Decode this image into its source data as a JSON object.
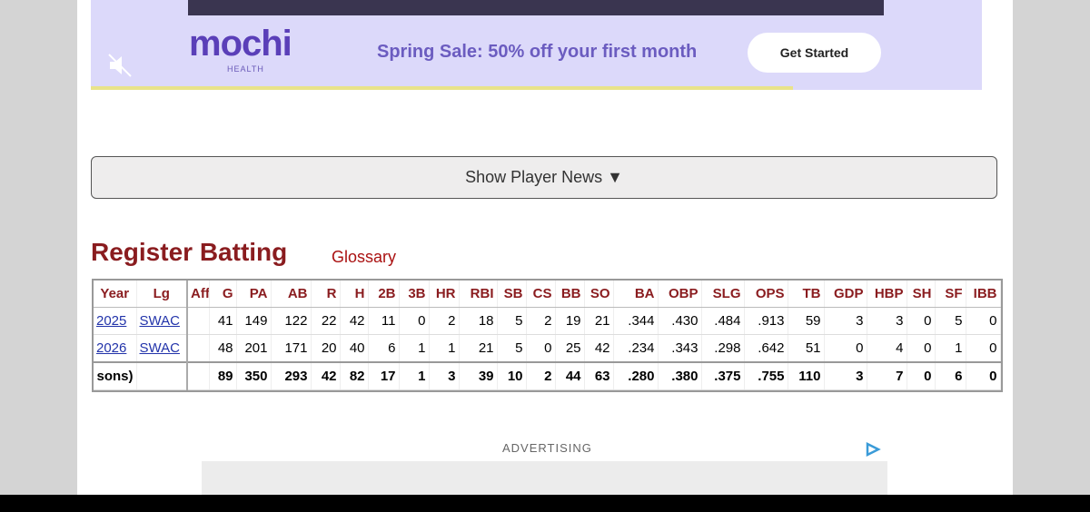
{
  "ad": {
    "brand": "mochi",
    "brand_sub": "HEALTH",
    "headline": "Spring Sale: 50% off your first month",
    "button": "Get Started"
  },
  "news_button": "Show Player News ▼",
  "section": {
    "title": "Register Batting",
    "glossary": "Glossary"
  },
  "table": {
    "columns": [
      "Year",
      "Lg",
      "Aff",
      "G",
      "PA",
      "AB",
      "R",
      "H",
      "2B",
      "3B",
      "HR",
      "RBI",
      "SB",
      "CS",
      "BB",
      "SO",
      "BA",
      "OBP",
      "SLG",
      "OPS",
      "TB",
      "GDP",
      "HBP",
      "SH",
      "SF",
      "IBB"
    ],
    "rows": [
      [
        "2025",
        "SWAC",
        null,
        "41",
        "149",
        "122",
        "22",
        "42",
        "11",
        "0",
        "2",
        "18",
        "5",
        "2",
        "19",
        "21",
        ".344",
        ".430",
        ".484",
        ".913",
        "59",
        "3",
        "3",
        "0",
        "5",
        "0"
      ],
      [
        "2026",
        "SWAC",
        null,
        "48",
        "201",
        "171",
        "20",
        "40",
        "6",
        "1",
        "1",
        "21",
        "5",
        "0",
        "25",
        "42",
        ".234",
        ".343",
        ".298",
        ".642",
        "51",
        "0",
        "4",
        "0",
        "1",
        "0"
      ],
      [
        "sons)",
        null,
        null,
        "89",
        "350",
        "293",
        "42",
        "82",
        "17",
        "1",
        "3",
        "39",
        "10",
        "2",
        "44",
        "63",
        ".280",
        ".380",
        ".375",
        ".755",
        "110",
        "3",
        "7",
        "0",
        "6",
        "0"
      ]
    ]
  },
  "advertising_label": "ADVERTISING"
}
